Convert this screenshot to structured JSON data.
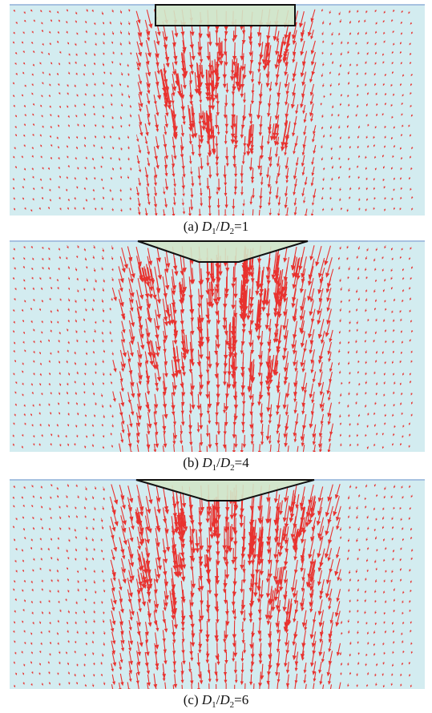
{
  "colors": {
    "background": "#d3ecf0",
    "vector": "#e8322f",
    "foundation_fill": "#d2e6c8",
    "outline": "#111111",
    "surface_line": "#8aa7d6"
  },
  "panels": [
    {
      "caption": {
        "prefix": "(a) ",
        "d1": "D",
        "s1": "1",
        "slash": "/",
        "d2": "D",
        "s2": "2",
        "suffix": "=1"
      },
      "shape": "flat"
    },
    {
      "caption": {
        "prefix": "(b) ",
        "d1": "D",
        "s1": "1",
        "slash": "/",
        "d2": "D",
        "s2": "2",
        "suffix": "=4"
      },
      "shape": "tapered"
    },
    {
      "caption": {
        "prefix": "(c) ",
        "d1": "D",
        "s1": "1",
        "slash": "/",
        "d2": "D",
        "s2": "2",
        "suffix": "=6"
      },
      "shape": "tapered-wide"
    }
  ]
}
